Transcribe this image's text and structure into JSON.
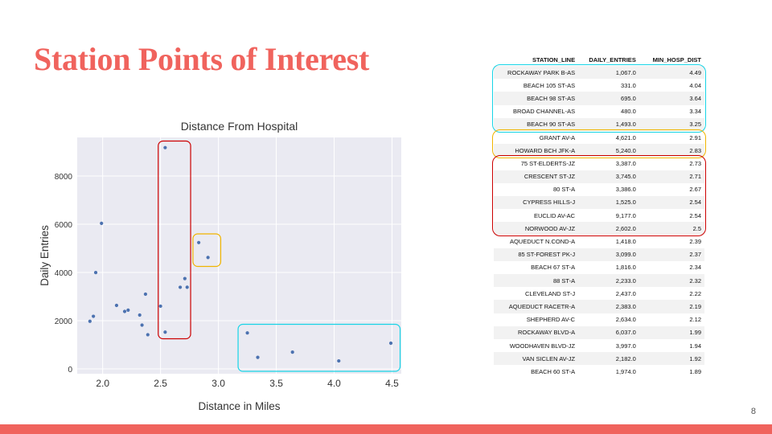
{
  "slide": {
    "title": "Station Points of Interest",
    "page_number": "8",
    "accent_color": "#f0635d"
  },
  "chart_data": {
    "type": "scatter",
    "title": "Distance From Hospital",
    "xlabel": "Distance in Miles",
    "ylabel": "Daily Entries",
    "xlim": [
      1.78,
      4.58
    ],
    "ylim": [
      -200,
      9600
    ],
    "xticks": [
      "2.0",
      "2.5",
      "3.0",
      "3.5",
      "4.0",
      "4.5"
    ],
    "yticks": [
      "0",
      "2000",
      "4000",
      "6000",
      "8000"
    ],
    "grid": true,
    "point_color": "#4c72b0",
    "points": [
      {
        "x": 4.49,
        "y": 1067
      },
      {
        "x": 4.04,
        "y": 331
      },
      {
        "x": 3.64,
        "y": 695
      },
      {
        "x": 3.34,
        "y": 480
      },
      {
        "x": 3.25,
        "y": 1493
      },
      {
        "x": 2.91,
        "y": 4621
      },
      {
        "x": 2.83,
        "y": 5240
      },
      {
        "x": 2.73,
        "y": 3387
      },
      {
        "x": 2.71,
        "y": 3745
      },
      {
        "x": 2.67,
        "y": 3386
      },
      {
        "x": 2.54,
        "y": 1525
      },
      {
        "x": 2.54,
        "y": 9177
      },
      {
        "x": 2.5,
        "y": 2602
      },
      {
        "x": 2.39,
        "y": 1418
      },
      {
        "x": 2.37,
        "y": 3099
      },
      {
        "x": 2.34,
        "y": 1816
      },
      {
        "x": 2.32,
        "y": 2233
      },
      {
        "x": 2.22,
        "y": 2437
      },
      {
        "x": 2.19,
        "y": 2383
      },
      {
        "x": 2.12,
        "y": 2634
      },
      {
        "x": 1.99,
        "y": 6037
      },
      {
        "x": 1.94,
        "y": 3997
      },
      {
        "x": 1.92,
        "y": 2182
      },
      {
        "x": 1.89,
        "y": 1974
      }
    ],
    "highlight_boxes": [
      {
        "color": "#cc0000",
        "x_range": [
          2.48,
          2.76
        ],
        "y_range": [
          1250,
          9450
        ]
      },
      {
        "color": "#f0b400",
        "x_range": [
          2.78,
          3.02
        ],
        "y_range": [
          4250,
          5600
        ]
      },
      {
        "color": "#17d4e6",
        "x_range": [
          3.17,
          4.57
        ],
        "y_range": -1
      }
    ]
  },
  "table": {
    "headers": [
      "STATION_LINE",
      "DAILY_ENTRIES",
      "MIN_HOSP_DIST"
    ],
    "rows": [
      [
        "ROCKAWAY PARK B-AS",
        "1,067.0",
        "4.49"
      ],
      [
        "BEACH 105 ST-AS",
        "331.0",
        "4.04"
      ],
      [
        "BEACH 98 ST-AS",
        "695.0",
        "3.64"
      ],
      [
        "BROAD CHANNEL-AS",
        "480.0",
        "3.34"
      ],
      [
        "BEACH 90 ST-AS",
        "1,493.0",
        "3.25"
      ],
      [
        "GRANT AV-A",
        "4,621.0",
        "2.91"
      ],
      [
        "HOWARD BCH JFK-A",
        "5,240.0",
        "2.83"
      ],
      [
        "75 ST-ELDERTS-JZ",
        "3,387.0",
        "2.73"
      ],
      [
        "CRESCENT ST-JZ",
        "3,745.0",
        "2.71"
      ],
      [
        "80 ST-A",
        "3,386.0",
        "2.67"
      ],
      [
        "CYPRESS HILLS-J",
        "1,525.0",
        "2.54"
      ],
      [
        "EUCLID AV-AC",
        "9,177.0",
        "2.54"
      ],
      [
        "NORWOOD AV-JZ",
        "2,602.0",
        "2.5"
      ],
      [
        "AQUEDUCT N.COND-A",
        "1,418.0",
        "2.39"
      ],
      [
        "85 ST-FOREST PK-J",
        "3,099.0",
        "2.37"
      ],
      [
        "BEACH 67 ST-A",
        "1,816.0",
        "2.34"
      ],
      [
        "88 ST-A",
        "2,233.0",
        "2.32"
      ],
      [
        "CLEVELAND ST-J",
        "2,437.0",
        "2.22"
      ],
      [
        "AQUEDUCT RACETR-A",
        "2,383.0",
        "2.19"
      ],
      [
        "SHEPHERD AV-C",
        "2,634.0",
        "2.12"
      ],
      [
        "ROCKAWAY BLVD-A",
        "6,037.0",
        "1.99"
      ],
      [
        "WOODHAVEN BLVD-JZ",
        "3,997.0",
        "1.94"
      ],
      [
        "VAN SICLEN AV-JZ",
        "2,182.0",
        "1.92"
      ],
      [
        "BEACH 60 ST-A",
        "1,974.0",
        "1.89"
      ]
    ],
    "highlight_groups": [
      {
        "color": "#17d4e6",
        "rows": [
          0,
          4
        ]
      },
      {
        "color": "#f0b400",
        "rows": [
          5,
          6
        ]
      },
      {
        "color": "#cc0000",
        "rows": [
          7,
          12
        ]
      }
    ]
  }
}
